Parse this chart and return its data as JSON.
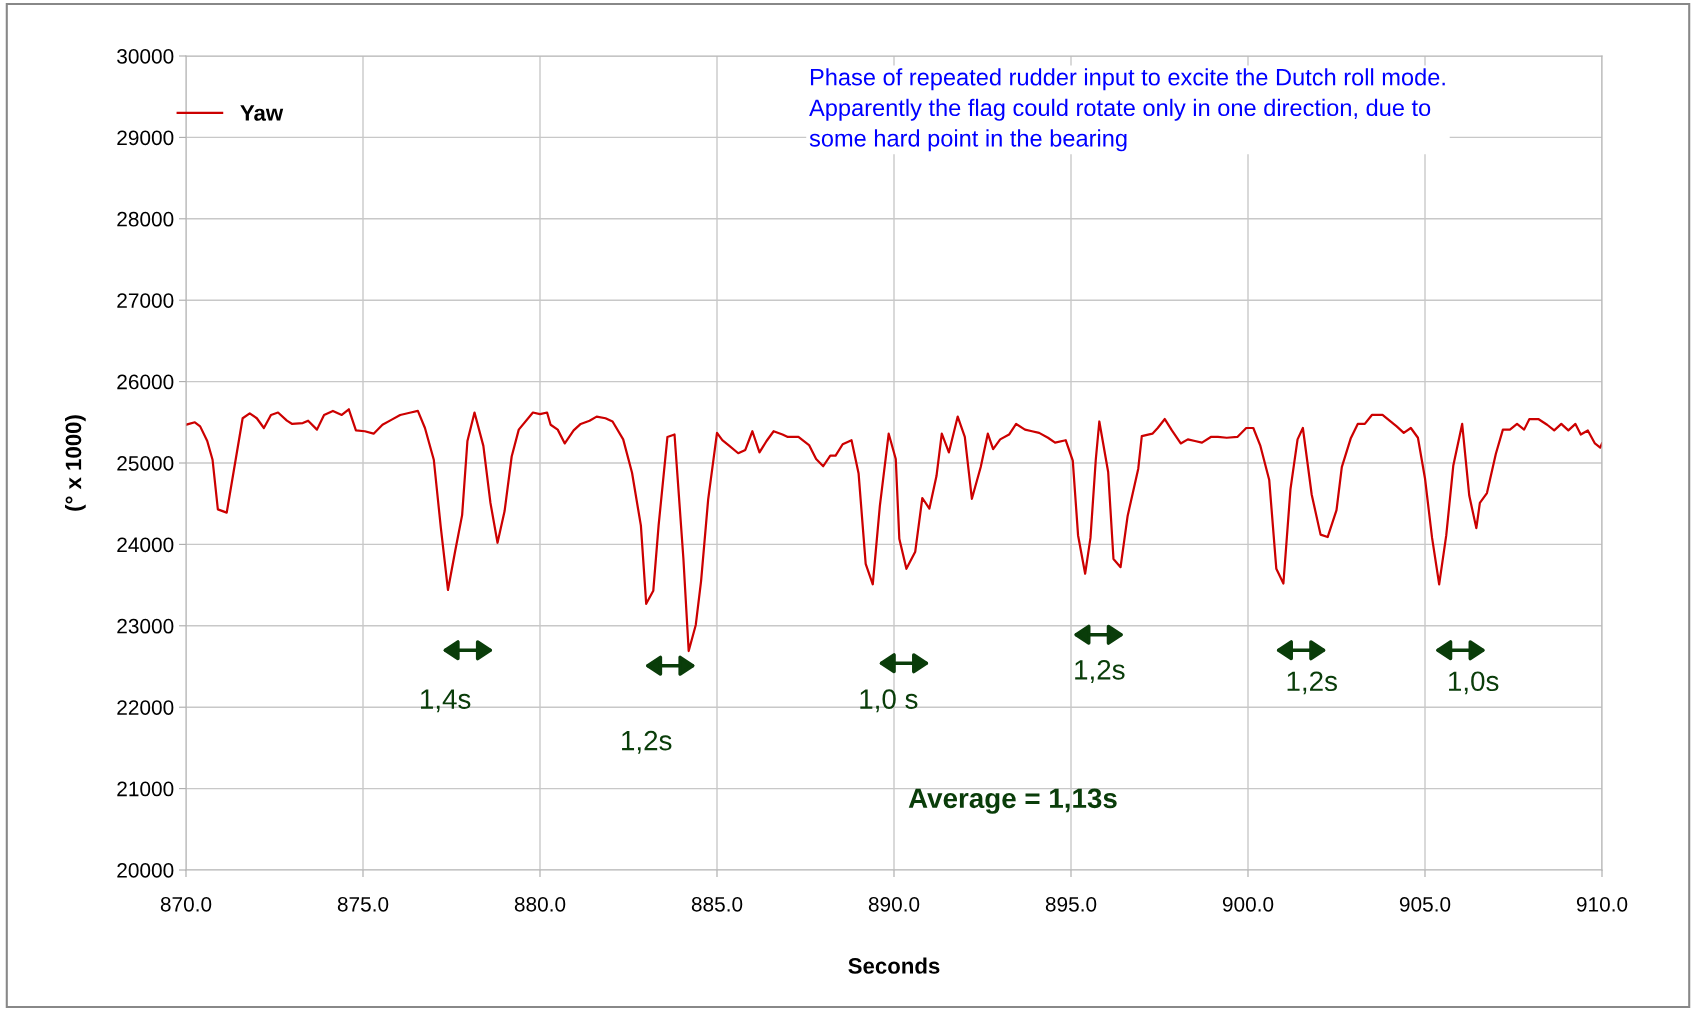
{
  "chart_data": {
    "type": "line",
    "xlabel": "Seconds",
    "ylabel": "(° x 1000)",
    "xlim": [
      870,
      910
    ],
    "ylim": [
      20000,
      30000
    ],
    "xticks": [
      {
        "value": 870,
        "label": "870.0"
      },
      {
        "value": 875,
        "label": "875.0"
      },
      {
        "value": 880,
        "label": "880.0"
      },
      {
        "value": 885,
        "label": "885.0"
      },
      {
        "value": 890,
        "label": "890.0"
      },
      {
        "value": 895,
        "label": "895.0"
      },
      {
        "value": 900,
        "label": "900.0"
      },
      {
        "value": 905,
        "label": "905.0"
      },
      {
        "value": 910,
        "label": "910.0"
      }
    ],
    "yticks": [
      20000,
      21000,
      22000,
      23000,
      24000,
      25000,
      26000,
      27000,
      28000,
      29000,
      30000
    ],
    "grid": true,
    "legend": "top left",
    "marker": "none",
    "line_style": "solid",
    "series": [
      {
        "name": "Yaw",
        "color": "#cc0000",
        "x": [
          870.0,
          870.25,
          870.4,
          870.6,
          870.75,
          870.9,
          871.15,
          871.6,
          871.8,
          872.0,
          872.2,
          872.4,
          872.6,
          872.85,
          873.0,
          873.3,
          873.45,
          873.7,
          873.9,
          874.15,
          874.4,
          874.6,
          874.8,
          875.05,
          875.3,
          875.55,
          875.8,
          876.05,
          876.35,
          876.55,
          876.75,
          877.0,
          877.2,
          877.4,
          877.6,
          877.8,
          877.95,
          878.15,
          878.4,
          878.6,
          878.8,
          879.0,
          879.2,
          879.4,
          879.8,
          880.0,
          880.2,
          880.3,
          880.5,
          880.7,
          880.95,
          881.15,
          881.4,
          881.6,
          881.85,
          882.05,
          882.35,
          882.6,
          882.85,
          883.0,
          883.2,
          883.35,
          883.6,
          883.8,
          884.05,
          884.2,
          884.4,
          884.55,
          884.75,
          885.0,
          885.15,
          885.35,
          885.6,
          885.8,
          886.0,
          886.2,
          886.4,
          886.6,
          886.85,
          887.0,
          887.3,
          887.6,
          887.8,
          888.0,
          888.2,
          888.35,
          888.55,
          888.8,
          889.0,
          889.2,
          889.4,
          889.6,
          889.85,
          890.05,
          890.15,
          890.35,
          890.6,
          890.8,
          891.0,
          891.2,
          891.35,
          891.55,
          891.8,
          892.0,
          892.2,
          892.45,
          892.65,
          892.8,
          893.0,
          893.25,
          893.45,
          893.7,
          893.9,
          894.1,
          894.35,
          894.55,
          894.85,
          895.05,
          895.2,
          895.4,
          895.55,
          895.7,
          895.8,
          896.05,
          896.2,
          896.4,
          896.6,
          896.9,
          897.0,
          897.3,
          897.45,
          897.65,
          897.85,
          898.1,
          898.3,
          898.5,
          898.7,
          898.95,
          899.15,
          899.4,
          899.7,
          899.95,
          900.15,
          900.35,
          900.6,
          900.8,
          901.0,
          901.2,
          901.4,
          901.55,
          901.8,
          902.05,
          902.25,
          902.5,
          902.65,
          902.9,
          903.1,
          903.3,
          903.5,
          903.8,
          904.0,
          904.2,
          904.4,
          904.6,
          904.8,
          905.0,
          905.2,
          905.4,
          905.6,
          905.8,
          906.05,
          906.25,
          906.45,
          906.55,
          906.75,
          907.0,
          907.2,
          907.4,
          907.6,
          907.8,
          907.95,
          908.2,
          908.45,
          908.65,
          908.85,
          909.05,
          909.25,
          909.4,
          909.6,
          909.8,
          909.95,
          910.0
        ],
        "values": [
          25470,
          25500,
          25450,
          25270,
          25040,
          24430,
          24390,
          25550,
          25610,
          25550,
          25430,
          25590,
          25620,
          25520,
          25480,
          25490,
          25520,
          25410,
          25590,
          25640,
          25590,
          25660,
          25400,
          25390,
          25360,
          25470,
          25530,
          25590,
          25620,
          25640,
          25430,
          25040,
          24200,
          23440,
          23910,
          24360,
          25270,
          25620,
          25210,
          24510,
          24020,
          24410,
          25080,
          25410,
          25620,
          25600,
          25620,
          25470,
          25410,
          25240,
          25400,
          25480,
          25520,
          25570,
          25550,
          25510,
          25290,
          24880,
          24230,
          23270,
          23430,
          24230,
          25320,
          25350,
          23830,
          22690,
          23010,
          23550,
          24550,
          25370,
          25280,
          25210,
          25120,
          25160,
          25390,
          25130,
          25270,
          25390,
          25350,
          25320,
          25320,
          25220,
          25050,
          24960,
          25090,
          25090,
          25230,
          25280,
          24870,
          23760,
          23510,
          24470,
          25360,
          25050,
          24070,
          23700,
          23910,
          24570,
          24440,
          24840,
          25360,
          25130,
          25570,
          25320,
          24560,
          24950,
          25360,
          25170,
          25290,
          25350,
          25480,
          25410,
          25390,
          25370,
          25310,
          25250,
          25280,
          25030,
          24110,
          23640,
          24080,
          25040,
          25510,
          24890,
          23820,
          23720,
          24350,
          24930,
          25330,
          25360,
          25430,
          25540,
          25400,
          25240,
          25290,
          25270,
          25250,
          25320,
          25320,
          25310,
          25320,
          25430,
          25430,
          25210,
          24790,
          23700,
          23520,
          24680,
          25290,
          25430,
          24610,
          24120,
          24090,
          24420,
          24950,
          25300,
          25480,
          25480,
          25590,
          25590,
          25520,
          25450,
          25370,
          25430,
          25310,
          24810,
          24080,
          23510,
          24110,
          24970,
          25480,
          24600,
          24200,
          24510,
          24630,
          25110,
          25410,
          25410,
          25480,
          25410,
          25540,
          25540,
          25470,
          25400,
          25480,
          25400,
          25480,
          25350,
          25400,
          25240,
          25190,
          25240
        ]
      }
    ],
    "annotations": [
      "Phase of repeated rudder input to excite the Dutch roll mode.\nApparently the flag could rotate only in one direction, due to\nsome hard point in the bearing",
      "1,4s",
      "1,2s",
      "1,0 s",
      "1,2s",
      "1,2s",
      "1,0s",
      "Average = 1,13s"
    ]
  }
}
